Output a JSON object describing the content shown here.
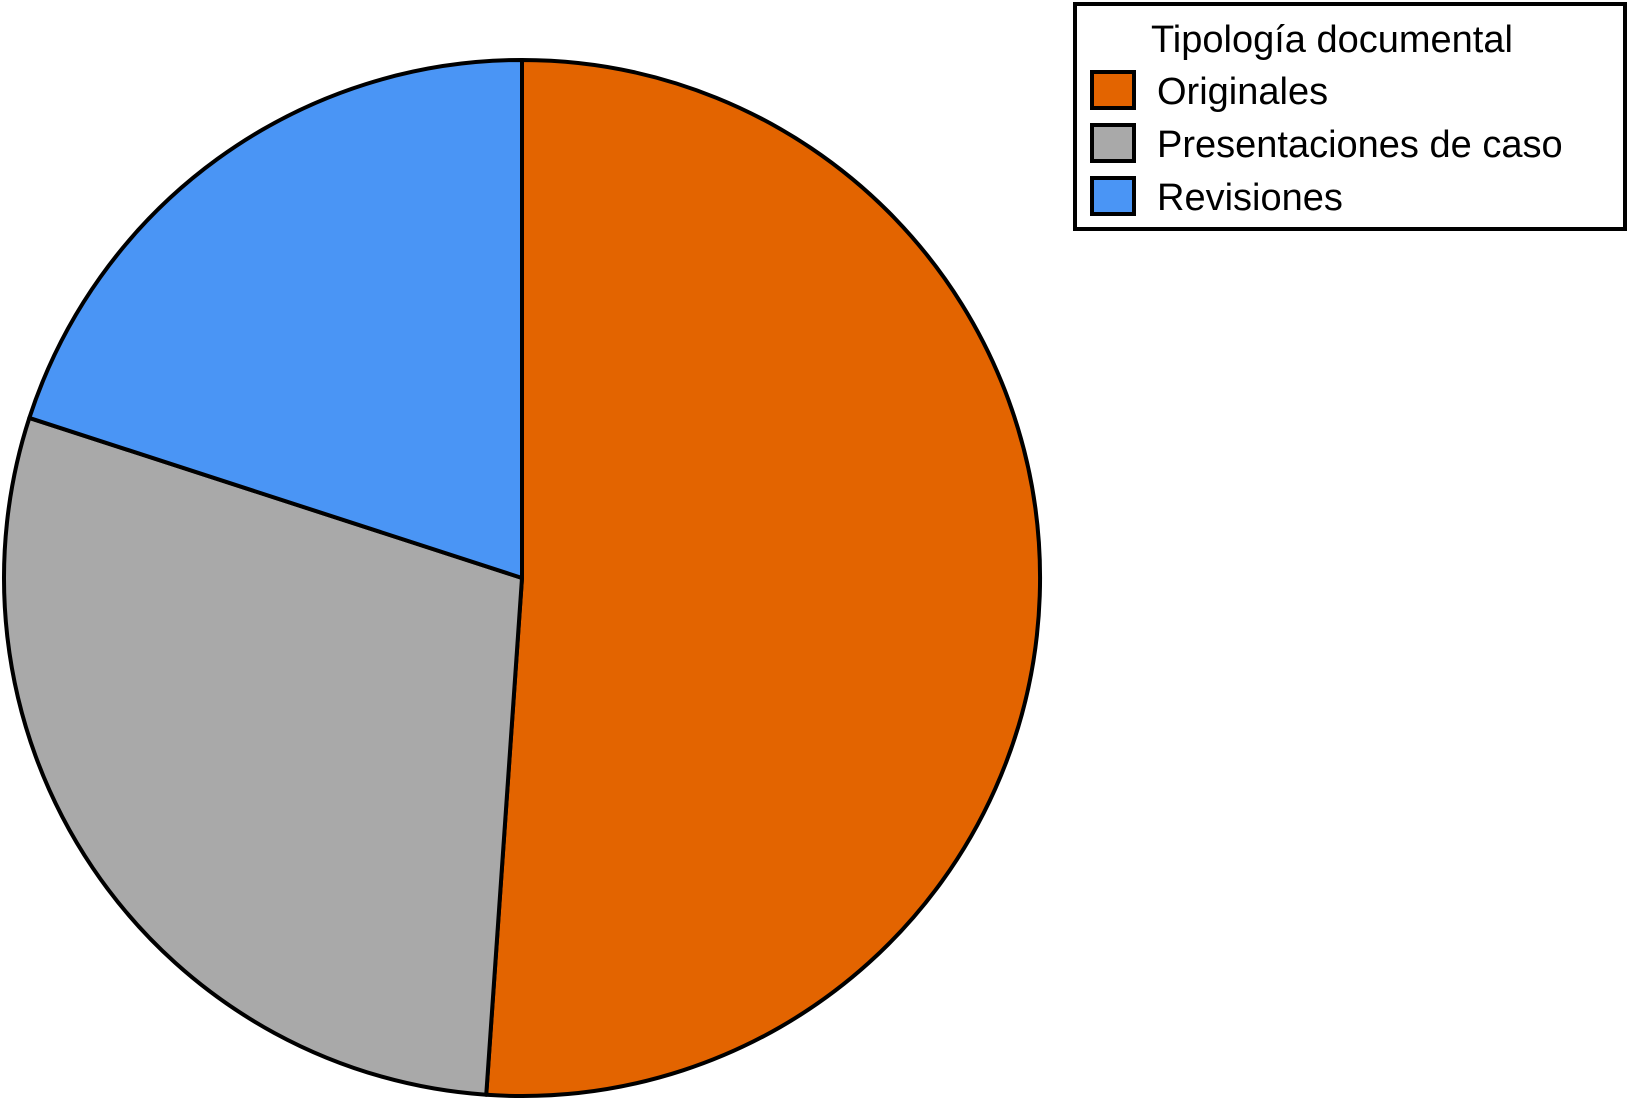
{
  "chart_data": {
    "type": "pie",
    "title": "",
    "legend": {
      "title": "Tipología documental",
      "placement": "top-right"
    },
    "start": "12 o'clock",
    "direction": "clockwise",
    "slices": [
      {
        "label": "Originales",
        "value": 51.1,
        "color": "#E36400"
      },
      {
        "label": "Presentaciones de caso",
        "value": 28.9,
        "color": "#A9A9A9"
      },
      {
        "label": "Revisiones",
        "value": 20.0,
        "color": "#4A95F5"
      }
    ],
    "edge_color": "#000000"
  }
}
